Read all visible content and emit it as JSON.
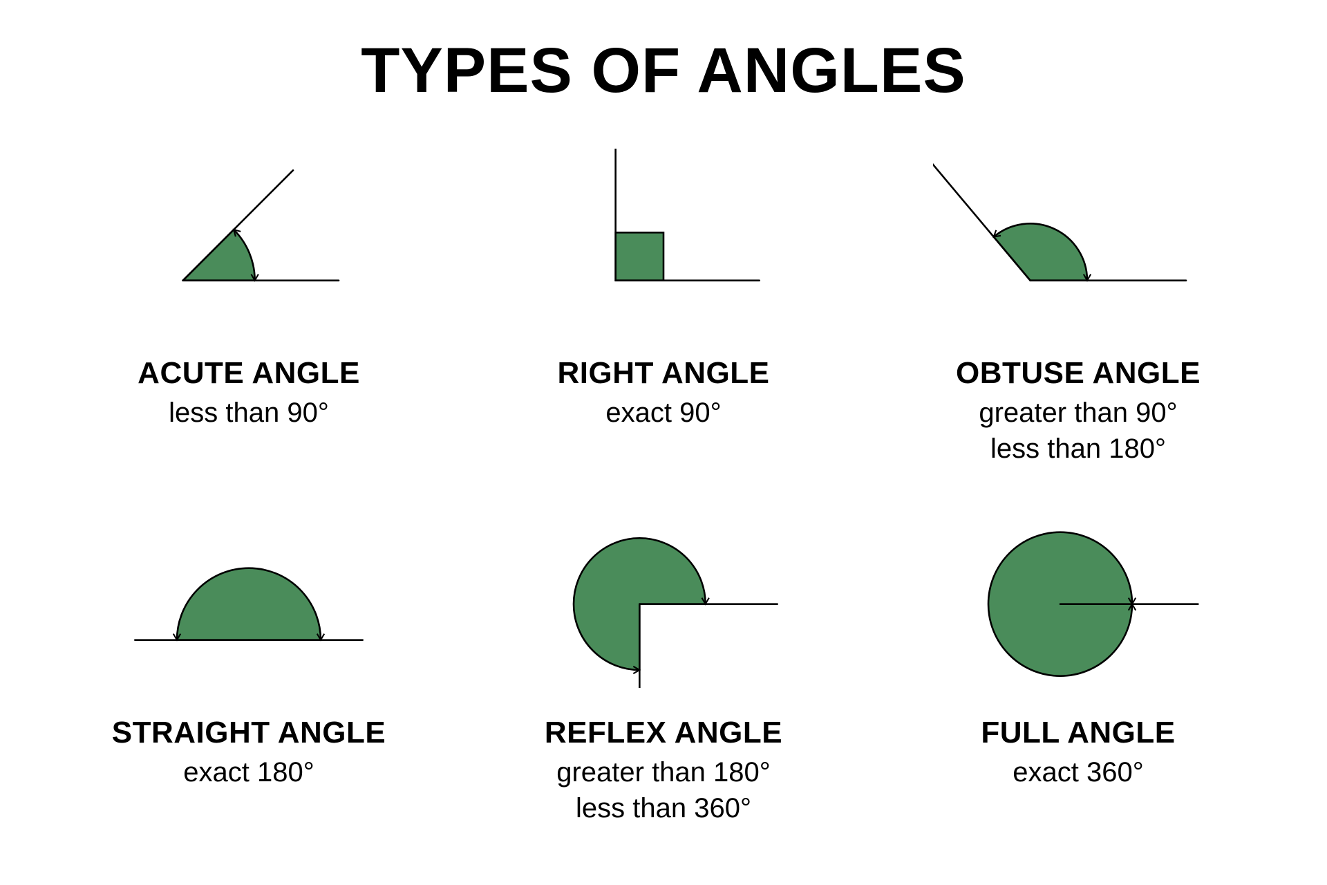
{
  "title": "TYPES OF ANGLES",
  "title_fontsize": 92,
  "name_fontsize": 44,
  "desc_fontsize": 40,
  "colors": {
    "fill": "#4a8c5a",
    "stroke": "#000000",
    "background": "#ffffff",
    "text": "#000000"
  },
  "stroke_width": 3,
  "angles": [
    {
      "id": "acute",
      "name": "ACUTE ANGLE",
      "desc": "less than 90°",
      "type": "sector",
      "vertex": [
        100,
        220
      ],
      "ray1_angle_deg": 0,
      "ray2_angle_deg": 45,
      "radius": 120,
      "ray_length": 260,
      "arrows_on_arc": true
    },
    {
      "id": "right",
      "name": "RIGHT ANGLE",
      "desc": "exact 90°",
      "type": "right",
      "vertex": [
        130,
        220
      ],
      "ray1_angle_deg": 0,
      "ray2_angle_deg": 90,
      "square_size": 80,
      "ray_length": 240
    },
    {
      "id": "obtuse",
      "name": "OBTUSE ANGLE",
      "desc": "greater than 90°\nless than 180°",
      "type": "sector",
      "vertex": [
        130,
        220
      ],
      "ray1_angle_deg": 0,
      "ray2_angle_deg": 130,
      "radius": 95,
      "ray_length": 260,
      "arrows_on_arc": true
    },
    {
      "id": "straight",
      "name": "STRAIGHT ANGLE",
      "desc": "exact 180°",
      "type": "sector",
      "vertex": [
        210,
        220
      ],
      "ray1_angle_deg": 0,
      "ray2_angle_deg": 180,
      "radius": 120,
      "ray_length": 190,
      "arrows_on_arc": true
    },
    {
      "id": "reflex",
      "name": "REFLEX ANGLE",
      "desc": "greater than 180°\nless than 360°",
      "type": "sector",
      "vertex": [
        170,
        160
      ],
      "ray1_angle_deg": 0,
      "ray2_angle_deg": 270,
      "radius": 110,
      "ray_length": 230,
      "arrows_on_arc": true
    },
    {
      "id": "full",
      "name": "FULL ANGLE",
      "desc": "exact 360°",
      "type": "full",
      "vertex": [
        180,
        160
      ],
      "radius": 120,
      "ray_length": 230,
      "arrows_on_arc": true
    }
  ]
}
